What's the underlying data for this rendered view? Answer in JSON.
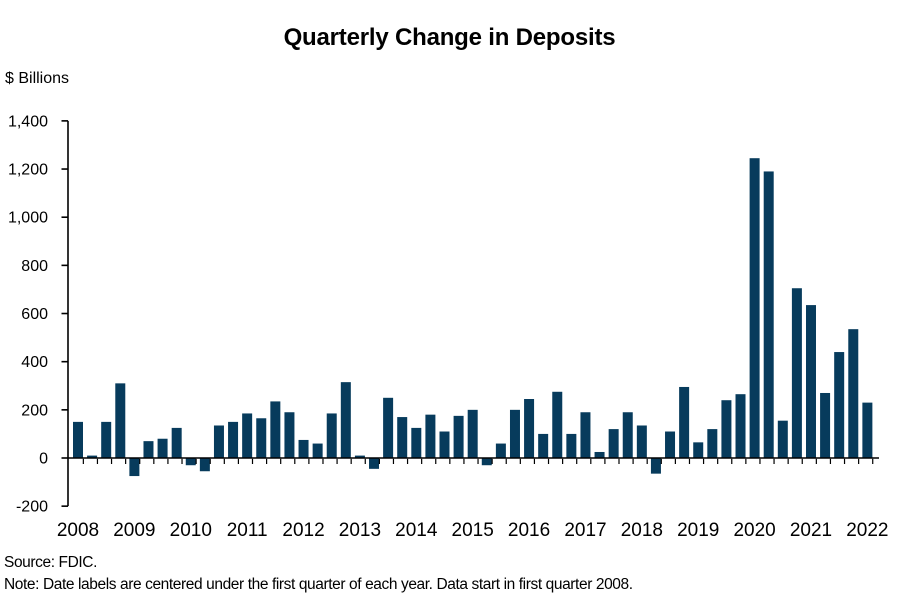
{
  "title": "Quarterly Change in Deposits",
  "units_label": "$ Billions",
  "footer": {
    "source": "Source: FDIC.",
    "note": "Note: Date labels are centered under the first quarter of each year. Data start in first quarter 2008."
  },
  "chart_data": {
    "type": "bar",
    "title": "Quarterly Change in Deposits",
    "ylabel": "$ Billions",
    "ylim": [
      -200,
      1400
    ],
    "ytick_step": 200,
    "ytick_labels": [
      "-200",
      "0",
      "200",
      "400",
      "600",
      "800",
      "1,000",
      "1,200",
      "1,400"
    ],
    "categories": [
      "2008",
      "2009",
      "2010",
      "2011",
      "2012",
      "2013",
      "2014",
      "2015",
      "2016",
      "2017",
      "2018",
      "2019",
      "2020",
      "2021",
      "2022"
    ],
    "start_quarter": "2008 Q1",
    "frequency": "quarterly",
    "legend": "none",
    "grid": "off",
    "bar_color": "#073b5c",
    "axis_color": "#000000",
    "values": [
      150,
      10,
      150,
      310,
      -75,
      70,
      80,
      125,
      -30,
      -55,
      135,
      150,
      185,
      165,
      235,
      190,
      75,
      60,
      185,
      315,
      10,
      -45,
      250,
      170,
      125,
      180,
      110,
      175,
      200,
      -30,
      60,
      200,
      245,
      100,
      275,
      100,
      190,
      25,
      120,
      190,
      135,
      -65,
      110,
      295,
      65,
      120,
      240,
      265,
      1245,
      1190,
      155,
      705,
      635,
      270,
      440,
      535,
      230
    ]
  }
}
